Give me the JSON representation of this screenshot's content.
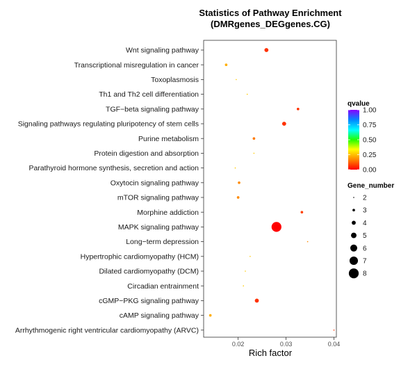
{
  "chart_data": {
    "type": "scatter",
    "title_line1": "Statistics of Pathway Enrichment",
    "title_line2": "(DMRgenes_DEGgenes.CG)",
    "xlabel": "Rich factor",
    "ylabel": "",
    "xlim": [
      0.0128,
      0.0405
    ],
    "xticks": [
      "0.02",
      "0.03",
      "0.04"
    ],
    "xtick_values": [
      0.02,
      0.03,
      0.04
    ],
    "grid": false,
    "legend_position": "right",
    "color_legend": {
      "title": "qvalue",
      "ticks": [
        "1.00",
        "0.75",
        "0.50",
        "0.25",
        "0.00"
      ],
      "tick_values": [
        1.0,
        0.75,
        0.5,
        0.25,
        0.0
      ],
      "gradient_colors": [
        "#ff0000",
        "#ff8800",
        "#ffff00",
        "#22ff00",
        "#00ffff",
        "#0088ff",
        "#8800ff"
      ]
    },
    "size_legend": {
      "title": "Gene_number",
      "values": [
        "2",
        "3",
        "4",
        "5",
        "6",
        "7",
        "8"
      ]
    },
    "points": [
      {
        "pathway": "Wnt signaling pathway",
        "rich_factor": 0.0259,
        "gene_number": 4,
        "qvalue": 0.06
      },
      {
        "pathway": "Transcriptional misregulation in cancer",
        "rich_factor": 0.0175,
        "gene_number": 3,
        "qvalue": 0.22
      },
      {
        "pathway": "Toxoplasmosis",
        "rich_factor": 0.0196,
        "gene_number": 2,
        "qvalue": 0.26
      },
      {
        "pathway": "Th1 and Th2 cell differentiation",
        "rich_factor": 0.0219,
        "gene_number": 2,
        "qvalue": 0.26
      },
      {
        "pathway": "TGF−beta signaling pathway",
        "rich_factor": 0.0325,
        "gene_number": 3,
        "qvalue": 0.06
      },
      {
        "pathway": "Signaling pathways regulating pluripotency of stem cells",
        "rich_factor": 0.0296,
        "gene_number": 4,
        "qvalue": 0.06
      },
      {
        "pathway": "Purine metabolism",
        "rich_factor": 0.0233,
        "gene_number": 3,
        "qvalue": 0.15
      },
      {
        "pathway": "Protein digestion and absorption",
        "rich_factor": 0.0233,
        "gene_number": 2,
        "qvalue": 0.26
      },
      {
        "pathway": "Parathyroid hormone synthesis, secretion and action",
        "rich_factor": 0.0194,
        "gene_number": 2,
        "qvalue": 0.26
      },
      {
        "pathway": "Oxytocin signaling pathway",
        "rich_factor": 0.0202,
        "gene_number": 3,
        "qvalue": 0.17
      },
      {
        "pathway": "mTOR signaling pathway",
        "rich_factor": 0.02,
        "gene_number": 3,
        "qvalue": 0.17
      },
      {
        "pathway": "Morphine addiction",
        "rich_factor": 0.0333,
        "gene_number": 3,
        "qvalue": 0.08
      },
      {
        "pathway": "MAPK signaling pathway",
        "rich_factor": 0.028,
        "gene_number": 8,
        "qvalue": 0.0
      },
      {
        "pathway": "Long−term depression",
        "rich_factor": 0.0345,
        "gene_number": 2,
        "qvalue": 0.17
      },
      {
        "pathway": "Hypertrophic cardiomyopathy (HCM)",
        "rich_factor": 0.0225,
        "gene_number": 2,
        "qvalue": 0.26
      },
      {
        "pathway": "Dilated cardiomyopathy (DCM)",
        "rich_factor": 0.0215,
        "gene_number": 2,
        "qvalue": 0.26
      },
      {
        "pathway": "Circadian entrainment",
        "rich_factor": 0.0211,
        "gene_number": 2,
        "qvalue": 0.26
      },
      {
        "pathway": "cGMP−PKG signaling pathway",
        "rich_factor": 0.0239,
        "gene_number": 4,
        "qvalue": 0.06
      },
      {
        "pathway": "cAMP signaling pathway",
        "rich_factor": 0.0142,
        "gene_number": 3,
        "qvalue": 0.22
      },
      {
        "pathway": "Arrhythmogenic right ventricular cardiomyopathy (ARVC)",
        "rich_factor": 0.04,
        "gene_number": 2,
        "qvalue": 0.06
      }
    ]
  }
}
